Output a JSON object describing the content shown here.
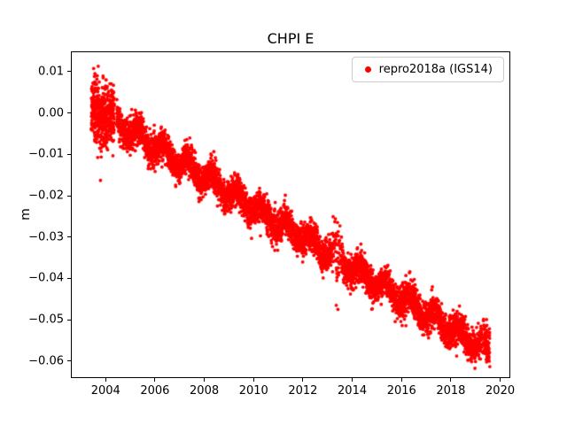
{
  "figure": {
    "background": "#ffffff"
  },
  "chart_data": {
    "type": "scatter",
    "title": "CHPI E",
    "xlabel": "",
    "ylabel": "m",
    "grid": false,
    "legend": {
      "location": "upper right",
      "label": "repro2018a (IGS14)",
      "marker_color": "#ff0000"
    },
    "xlim": [
      2002.59,
      2020.41
    ],
    "ylim": [
      -0.0641,
      0.0149
    ],
    "xticks": [
      2004,
      2006,
      2008,
      2010,
      2012,
      2014,
      2016,
      2018,
      2020
    ],
    "xticklabels": [
      "2004",
      "2006",
      "2008",
      "2010",
      "2012",
      "2014",
      "2016",
      "2018",
      "2020"
    ],
    "yticks": [
      0.01,
      0.0,
      -0.01,
      -0.02,
      -0.03,
      -0.04,
      -0.05,
      -0.06
    ],
    "yticklabels": [
      "0.01",
      "0.00",
      "−0.01",
      "−0.02",
      "−0.03",
      "−0.04",
      "−0.05",
      "−0.06"
    ],
    "series": [
      {
        "name": "repro2018a (IGS14)",
        "color": "#ff0000",
        "marker": "dot",
        "x_start": 2003.42,
        "x_end": 2019.58,
        "trend_description": "approximately linear decrease from +0.002 m in mid-2003 to -0.058 m in mid-2019 (about -0.0037 m per year)",
        "sampled_points": [
          [
            2003.5,
            0.001
          ],
          [
            2004.0,
            -0.0008
          ],
          [
            2005.0,
            -0.0045
          ],
          [
            2006.0,
            -0.0081
          ],
          [
            2007.0,
            -0.0118
          ],
          [
            2008.0,
            -0.0155
          ],
          [
            2009.0,
            -0.0191
          ],
          [
            2010.0,
            -0.0228
          ],
          [
            2011.0,
            -0.0264
          ],
          [
            2012.0,
            -0.0301
          ],
          [
            2013.0,
            -0.0338
          ],
          [
            2014.0,
            -0.0374
          ],
          [
            2015.0,
            -0.0411
          ],
          [
            2016.0,
            -0.0447
          ],
          [
            2017.0,
            -0.0484
          ],
          [
            2018.0,
            -0.0521
          ],
          [
            2019.0,
            -0.0557
          ],
          [
            2019.55,
            -0.0576
          ]
        ],
        "noise_sd": 0.0016,
        "seasonal_amplitude": 0.0018,
        "segments": [
          {
            "x0": 2003.42,
            "x1": 2004.35,
            "rate": 520,
            "extra_sd": 0.0022
          },
          {
            "x0": 2004.45,
            "x1": 2013.2,
            "rate": 365,
            "extra_sd": 0.0003
          },
          {
            "x0": 2013.2,
            "x1": 2013.6,
            "rate": 160,
            "extra_sd": 0.0025
          },
          {
            "x0": 2013.6,
            "x1": 2019.25,
            "rate": 365,
            "extra_sd": 0.0003
          },
          {
            "x0": 2019.3,
            "x1": 2019.58,
            "rate": 280,
            "extra_sd": 0.0008
          }
        ],
        "outliers": [
          [
            2003.7,
            0.0113
          ],
          [
            2003.66,
            0.009
          ],
          [
            2003.79,
            -0.0163
          ],
          [
            2003.9,
            0.0085
          ],
          [
            2004.02,
            0.008
          ],
          [
            2010.55,
            -0.0285
          ],
          [
            2013.35,
            -0.0465
          ],
          [
            2013.42,
            -0.0475
          ],
          [
            2016.1,
            -0.049
          ],
          [
            2019.45,
            -0.0602
          ],
          [
            2019.5,
            -0.0598
          ]
        ]
      }
    ]
  }
}
